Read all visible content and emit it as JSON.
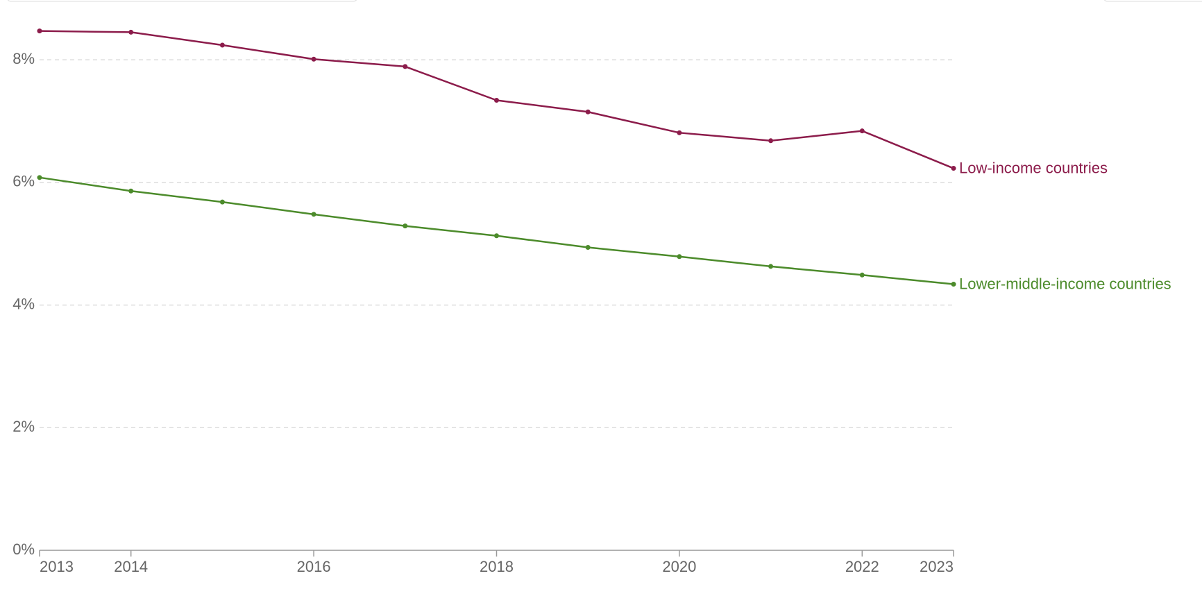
{
  "chart_data": {
    "type": "line",
    "x": [
      2013,
      2014,
      2015,
      2016,
      2017,
      2018,
      2019,
      2020,
      2021,
      2022,
      2023
    ],
    "series": [
      {
        "name": "Low-income countries",
        "color": "#8c1c4b",
        "values": [
          8.47,
          8.45,
          8.24,
          8.01,
          7.89,
          7.34,
          7.15,
          6.81,
          6.68,
          6.84,
          6.23
        ]
      },
      {
        "name": "Lower-middle-income countries",
        "color": "#4c8b2b",
        "values": [
          6.08,
          5.86,
          5.68,
          5.48,
          5.29,
          5.13,
          4.94,
          4.79,
          4.63,
          4.49,
          4.34
        ]
      }
    ],
    "xlim": [
      2013,
      2023
    ],
    "xticks": [
      2013,
      2014,
      2016,
      2018,
      2020,
      2022,
      2023
    ],
    "ylim": [
      0,
      8.5
    ],
    "yticks": [
      {
        "value": 0,
        "label": "0%"
      },
      {
        "value": 2,
        "label": "2%"
      },
      {
        "value": 4,
        "label": "4%"
      },
      {
        "value": 6,
        "label": "6%"
      },
      {
        "value": 8,
        "label": "8%"
      }
    ],
    "grid": true
  }
}
